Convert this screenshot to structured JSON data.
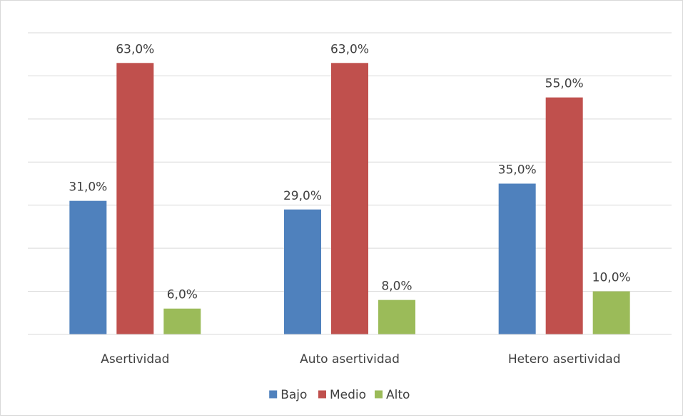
{
  "chart_data": {
    "type": "bar",
    "categories": [
      "Asertividad",
      "Auto asertividad",
      "Hetero asertividad"
    ],
    "series": [
      {
        "name": "Bajo",
        "values": [
          31.0,
          29.0,
          35.0
        ],
        "labels": [
          "31,0%",
          "29,0%",
          "35,0%"
        ],
        "color": "#4f81bd"
      },
      {
        "name": "Medio",
        "values": [
          63.0,
          63.0,
          55.0
        ],
        "labels": [
          "63,0%",
          "63,0%",
          "55,0%"
        ],
        "color": "#c0504d"
      },
      {
        "name": "Alto",
        "values": [
          6.0,
          8.0,
          10.0
        ],
        "labels": [
          "6,0%",
          "8,0%",
          "10,0%"
        ],
        "color": "#9bbb59"
      }
    ],
    "ylim": [
      0,
      70
    ],
    "y_grid_step": 10,
    "grid": true,
    "y_axis_labels_shown": false,
    "legend_position": "bottom"
  }
}
